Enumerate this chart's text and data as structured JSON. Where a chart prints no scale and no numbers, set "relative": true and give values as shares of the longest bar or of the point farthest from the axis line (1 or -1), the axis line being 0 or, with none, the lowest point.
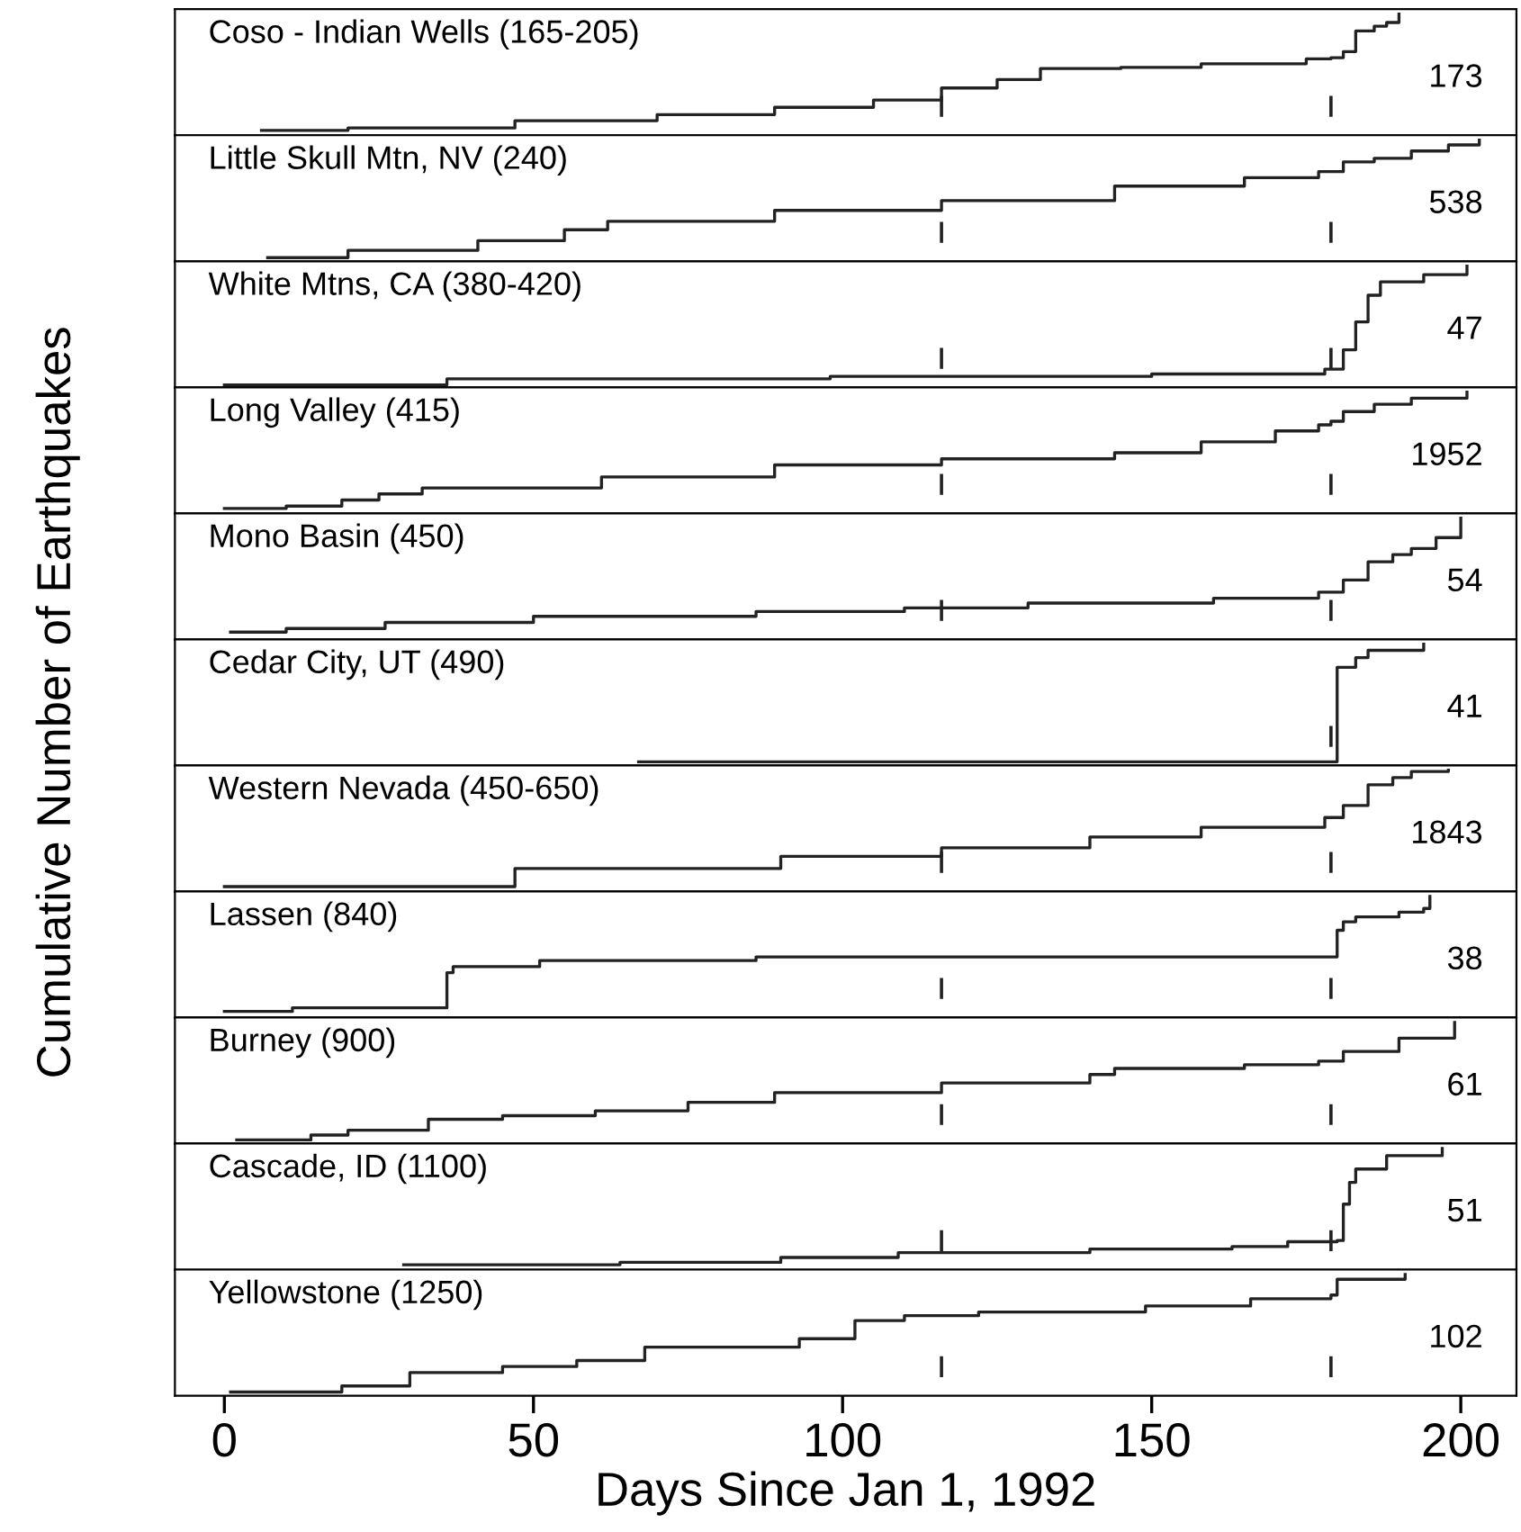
{
  "chart_data": [
    {
      "type": "step",
      "relative": true,
      "x": [
        6,
        20,
        47,
        70,
        89,
        105,
        116,
        125,
        132,
        145,
        158,
        175,
        179,
        181,
        183,
        186,
        188,
        190
      ],
      "values": [
        0.04,
        0.06,
        0.12,
        0.17,
        0.23,
        0.29,
        0.39,
        0.46,
        0.55,
        0.56,
        0.59,
        0.63,
        0.64,
        0.69,
        0.86,
        0.9,
        0.93,
        1
      ],
      "color": "#222222",
      "annotations": [
        "Coso - Indian Wells (165-205)",
        "173"
      ],
      "xlim": [
        -8,
        209
      ],
      "ref_lines": [
        {
          "axis": "x",
          "value": 116
        },
        {
          "axis": "x",
          "value": 179
        }
      ],
      "tick_labels": false,
      "grid": false,
      "legend": false
    },
    {
      "type": "step",
      "relative": true,
      "x": [
        7,
        20,
        41,
        55,
        62,
        89,
        116,
        144,
        165,
        177,
        181,
        186,
        192,
        198,
        203
      ],
      "values": [
        0.03,
        0.09,
        0.17,
        0.26,
        0.33,
        0.42,
        0.5,
        0.62,
        0.69,
        0.74,
        0.82,
        0.85,
        0.91,
        0.96,
        1
      ],
      "color": "#222222",
      "annotations": [
        "Little Skull Mtn, NV (240)",
        "538"
      ],
      "xlim": [
        -8,
        209
      ],
      "ref_lines": [
        {
          "axis": "x",
          "value": 116
        },
        {
          "axis": "x",
          "value": 179
        }
      ],
      "tick_labels": false,
      "grid": false,
      "legend": false
    },
    {
      "type": "step",
      "relative": true,
      "x": [
        0,
        35,
        36,
        98,
        150,
        178,
        181,
        183,
        185,
        187,
        194,
        201
      ],
      "values": [
        0.02,
        0.02,
        0.07,
        0.09,
        0.11,
        0.15,
        0.31,
        0.54,
        0.76,
        0.87,
        0.93,
        1
      ],
      "color": "#222222",
      "annotations": [
        "White Mtns, CA (380-420)",
        "47"
      ],
      "xlim": [
        -8,
        209
      ],
      "ref_lines": [
        {
          "axis": "x",
          "value": 116
        },
        {
          "axis": "x",
          "value": 179
        }
      ],
      "tick_labels": false,
      "grid": false,
      "legend": false
    },
    {
      "type": "step",
      "relative": true,
      "x": [
        0,
        10,
        19,
        25,
        32,
        61,
        89,
        116,
        144,
        158,
        170,
        177,
        179,
        181,
        186,
        192,
        201
      ],
      "values": [
        0.04,
        0.06,
        0.11,
        0.16,
        0.21,
        0.3,
        0.4,
        0.45,
        0.5,
        0.59,
        0.68,
        0.73,
        0.76,
        0.84,
        0.9,
        0.95,
        1
      ],
      "color": "#222222",
      "annotations": [
        "Long Valley (415)",
        "1952"
      ],
      "xlim": [
        -8,
        209
      ],
      "ref_lines": [
        {
          "axis": "x",
          "value": 116
        },
        {
          "axis": "x",
          "value": 179
        }
      ],
      "tick_labels": false,
      "grid": false,
      "legend": false
    },
    {
      "type": "step",
      "relative": true,
      "x": [
        1,
        10,
        26,
        50,
        86,
        110,
        130,
        160,
        177,
        181,
        185,
        189,
        192,
        196,
        200
      ],
      "values": [
        0.06,
        0.09,
        0.14,
        0.19,
        0.23,
        0.26,
        0.3,
        0.34,
        0.39,
        0.49,
        0.64,
        0.7,
        0.75,
        0.84,
        1
      ],
      "color": "#222222",
      "annotations": [
        "Mono Basin (450)",
        "54"
      ],
      "xlim": [
        -8,
        209
      ],
      "ref_lines": [
        {
          "axis": "x",
          "value": 116
        },
        {
          "axis": "x",
          "value": 179
        }
      ],
      "tick_labels": false,
      "grid": false,
      "legend": false
    },
    {
      "type": "step",
      "relative": true,
      "x": [
        67,
        179,
        180,
        183,
        185,
        194
      ],
      "values": [
        0.03,
        0.03,
        0.81,
        0.89,
        0.95,
        1
      ],
      "color": "#222222",
      "annotations": [
        "Cedar City, UT (490)",
        "41"
      ],
      "ylabel": "Cumulative Number of Earthquakes",
      "xlim": [
        -8,
        209
      ],
      "ref_lines": [
        {
          "axis": "x",
          "value": 179
        }
      ],
      "tick_labels": false,
      "grid": false,
      "legend": false
    },
    {
      "type": "step",
      "relative": true,
      "x": [
        0,
        47,
        90,
        116,
        140,
        158,
        178,
        181,
        185,
        189,
        192,
        198
      ],
      "values": [
        0.04,
        0.19,
        0.29,
        0.36,
        0.45,
        0.53,
        0.61,
        0.71,
        0.88,
        0.94,
        0.99,
        1
      ],
      "color": "#222222",
      "annotations": [
        "Western Nevada (450-650)",
        "1843"
      ],
      "xlim": [
        -8,
        209
      ],
      "ref_lines": [
        {
          "axis": "x",
          "value": 116
        },
        {
          "axis": "x",
          "value": 179
        }
      ],
      "tick_labels": false,
      "grid": false,
      "legend": false
    },
    {
      "type": "step",
      "relative": true,
      "x": [
        0,
        11,
        36,
        37,
        51,
        86,
        179,
        180,
        181,
        183,
        190,
        194,
        195
      ],
      "values": [
        0.05,
        0.08,
        0.37,
        0.42,
        0.47,
        0.5,
        0.5,
        0.72,
        0.79,
        0.83,
        0.87,
        0.9,
        1
      ],
      "color": "#222222",
      "annotations": [
        "Lassen (840)",
        "38"
      ],
      "xlim": [
        -8,
        209
      ],
      "ref_lines": [
        {
          "axis": "x",
          "value": 116
        },
        {
          "axis": "x",
          "value": 179
        }
      ],
      "tick_labels": false,
      "grid": false,
      "legend": false
    },
    {
      "type": "step",
      "relative": true,
      "x": [
        2,
        14,
        20,
        33,
        45,
        60,
        75,
        89,
        116,
        140,
        144,
        165,
        177,
        181,
        190,
        199
      ],
      "values": [
        0.03,
        0.07,
        0.11,
        0.2,
        0.23,
        0.27,
        0.34,
        0.42,
        0.5,
        0.57,
        0.62,
        0.65,
        0.68,
        0.76,
        0.87,
        1
      ],
      "color": "#222222",
      "annotations": [
        "Burney (900)",
        "61"
      ],
      "xlim": [
        -8,
        209
      ],
      "ref_lines": [
        {
          "axis": "x",
          "value": 116
        },
        {
          "axis": "x",
          "value": 179
        }
      ],
      "tick_labels": false,
      "grid": false,
      "legend": false
    },
    {
      "type": "step",
      "relative": true,
      "x": [
        29,
        64,
        90,
        109,
        140,
        163,
        172,
        180,
        181,
        182,
        183,
        188,
        197
      ],
      "values": [
        0.04,
        0.06,
        0.1,
        0.14,
        0.17,
        0.19,
        0.23,
        0.24,
        0.54,
        0.72,
        0.83,
        0.94,
        1
      ],
      "color": "#222222",
      "annotations": [
        "Cascade, ID (1100)",
        "51"
      ],
      "xlim": [
        -8,
        209
      ],
      "ref_lines": [
        {
          "axis": "x",
          "value": 116
        },
        {
          "axis": "x",
          "value": 179
        }
      ],
      "tick_labels": false,
      "grid": false,
      "legend": false
    },
    {
      "type": "step",
      "relative": true,
      "x": [
        1,
        19,
        30,
        45,
        57,
        68,
        93,
        102,
        110,
        122,
        149,
        166,
        179,
        180,
        191
      ],
      "values": [
        0.03,
        0.08,
        0.19,
        0.24,
        0.29,
        0.4,
        0.47,
        0.62,
        0.66,
        0.69,
        0.74,
        0.8,
        0.83,
        0.96,
        1
      ],
      "color": "#222222",
      "annotations": [
        "Yellowstone (1250)",
        "102"
      ],
      "xlabel": "Days Since Jan 1, 1992",
      "xlim": [
        -8,
        209
      ],
      "xticks": [
        0,
        50,
        100,
        150,
        200
      ],
      "ref_lines": [
        {
          "axis": "x",
          "value": 116
        },
        {
          "axis": "x",
          "value": 179
        }
      ],
      "tick_labels": "x",
      "grid": false,
      "legend": false
    }
  ]
}
